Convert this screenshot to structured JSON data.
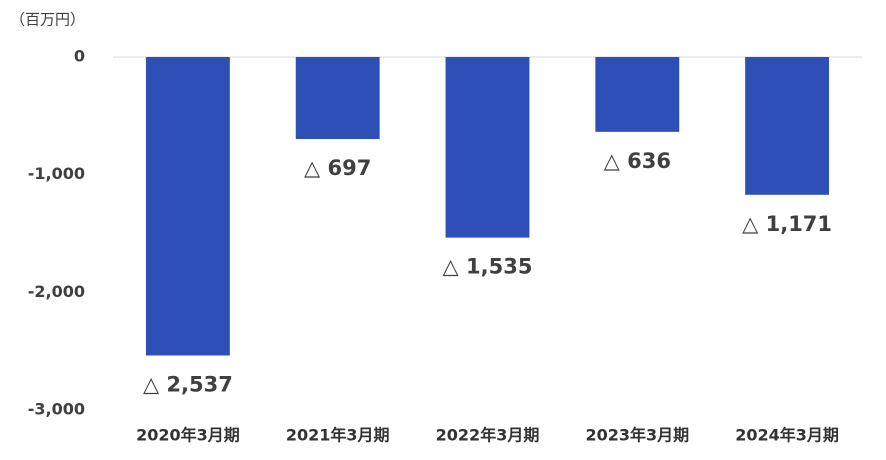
{
  "chart_data": {
    "type": "bar",
    "y_label": "（百万円）",
    "categories": [
      "2020年3月期",
      "2021年3月期",
      "2022年3月期",
      "2023年3月期",
      "2024年3月期"
    ],
    "values": [
      -2537,
      -697,
      -1535,
      -636,
      -1171
    ],
    "value_labels": [
      "△ 2,537",
      "△ 697",
      "△ 1,535",
      "△ 636",
      "△ 1,171"
    ],
    "color": "#2e4fb5",
    "ylim": [
      -3000,
      0
    ],
    "yticks": [
      0,
      {
        "value": -1000,
        "label": "-1,000"
      },
      {
        "value": -2000,
        "label": "-2,000"
      },
      {
        "value": -3000,
        "label": "-3,000"
      }
    ],
    "grid": false
  }
}
